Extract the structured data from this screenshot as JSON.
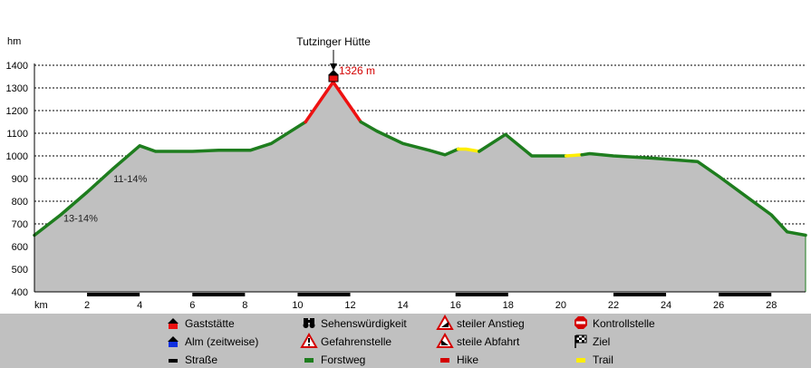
{
  "chart_data": {
    "type": "area",
    "y_unit_label": "hm",
    "x_unit_label": "km",
    "xlim": [
      0,
      29.3
    ],
    "ylim": [
      400,
      1400
    ],
    "x_ticks": [
      2,
      4,
      6,
      8,
      10,
      12,
      14,
      16,
      18,
      20,
      22,
      24,
      26,
      28
    ],
    "y_ticks": [
      400,
      500,
      600,
      700,
      800,
      900,
      1000,
      1100,
      1200,
      1300,
      1400
    ],
    "grid": "horizontal-dashed",
    "fill_color": "#c0c0c0",
    "profile": [
      {
        "x": 0,
        "y": 650
      },
      {
        "x": 1,
        "y": 740
      },
      {
        "x": 2,
        "y": 840
      },
      {
        "x": 3,
        "y": 945
      },
      {
        "x": 4,
        "y": 1045
      },
      {
        "x": 4.6,
        "y": 1020
      },
      {
        "x": 6,
        "y": 1020
      },
      {
        "x": 7,
        "y": 1025
      },
      {
        "x": 8.2,
        "y": 1025
      },
      {
        "x": 9,
        "y": 1055
      },
      {
        "x": 10.3,
        "y": 1150
      },
      {
        "x": 11.35,
        "y": 1326
      },
      {
        "x": 12.4,
        "y": 1150
      },
      {
        "x": 13,
        "y": 1110
      },
      {
        "x": 14,
        "y": 1055
      },
      {
        "x": 15,
        "y": 1025
      },
      {
        "x": 15.6,
        "y": 1005
      },
      {
        "x": 16.1,
        "y": 1030
      },
      {
        "x": 16.4,
        "y": 1030
      },
      {
        "x": 16.9,
        "y": 1020
      },
      {
        "x": 17.9,
        "y": 1095
      },
      {
        "x": 18.9,
        "y": 1000
      },
      {
        "x": 20.2,
        "y": 1000
      },
      {
        "x": 20.8,
        "y": 1005
      },
      {
        "x": 21.1,
        "y": 1010
      },
      {
        "x": 22,
        "y": 1000
      },
      {
        "x": 23.5,
        "y": 990
      },
      {
        "x": 25.2,
        "y": 975
      },
      {
        "x": 26,
        "y": 910
      },
      {
        "x": 27,
        "y": 825
      },
      {
        "x": 28,
        "y": 740
      },
      {
        "x": 28.6,
        "y": 665
      },
      {
        "x": 29.3,
        "y": 650
      }
    ],
    "segments": [
      {
        "type": "Forstweg",
        "from": 0,
        "to": 10.3
      },
      {
        "type": "Hike",
        "from": 10.3,
        "to": 12.4
      },
      {
        "type": "Forstweg",
        "from": 12.4,
        "to": 16.1
      },
      {
        "type": "Trail",
        "from": 16.1,
        "to": 16.9
      },
      {
        "type": "Forstweg",
        "from": 16.9,
        "to": 20.2
      },
      {
        "type": "Trail",
        "from": 20.2,
        "to": 20.8
      },
      {
        "type": "Forstweg",
        "from": 20.8,
        "to": 29.3
      }
    ],
    "road_segments": [
      {
        "from": 2,
        "to": 4
      },
      {
        "from": 6,
        "to": 8
      },
      {
        "from": 10,
        "to": 12
      },
      {
        "from": 16,
        "to": 18
      },
      {
        "from": 22,
        "to": 24
      },
      {
        "from": 26,
        "to": 28
      }
    ],
    "annotations": [
      {
        "text": "11-14%",
        "x": 3,
        "y": 885
      },
      {
        "text": "13-14%",
        "x": 1.1,
        "y": 710
      }
    ],
    "peak": {
      "name": "Tutzinger Hütte",
      "x": 11.35,
      "y": 1326,
      "label": "1326 m"
    },
    "colors": {
      "Forstweg": "#1e7d1e",
      "Hike": "#ee1111",
      "Trail": "#ffee00",
      "Straße": "#000000",
      "grid": "#000000"
    }
  },
  "legend": {
    "items": [
      {
        "label": "Gaststätte",
        "icon": "gaststaette-icon"
      },
      {
        "label": "Sehenswürdigkeit",
        "icon": "binoculars-icon"
      },
      {
        "label": "steiler Anstieg",
        "icon": "steep-ascent-icon"
      },
      {
        "label": "Kontrollstelle",
        "icon": "stop-icon"
      },
      {
        "label": "Alm (zeitweise)",
        "icon": "alm-icon"
      },
      {
        "label": "Gefahrenstelle",
        "icon": "danger-icon"
      },
      {
        "label": "steile Abfahrt",
        "icon": "steep-descent-icon"
      },
      {
        "label": "Ziel",
        "icon": "finish-flag-icon"
      },
      {
        "label": "Straße",
        "icon": "road-swatch-icon"
      },
      {
        "label": "Forstweg",
        "icon": "forest-road-swatch-icon"
      },
      {
        "label": "Hike",
        "icon": "hike-swatch-icon"
      },
      {
        "label": "Trail",
        "icon": "trail-swatch-icon"
      }
    ]
  }
}
